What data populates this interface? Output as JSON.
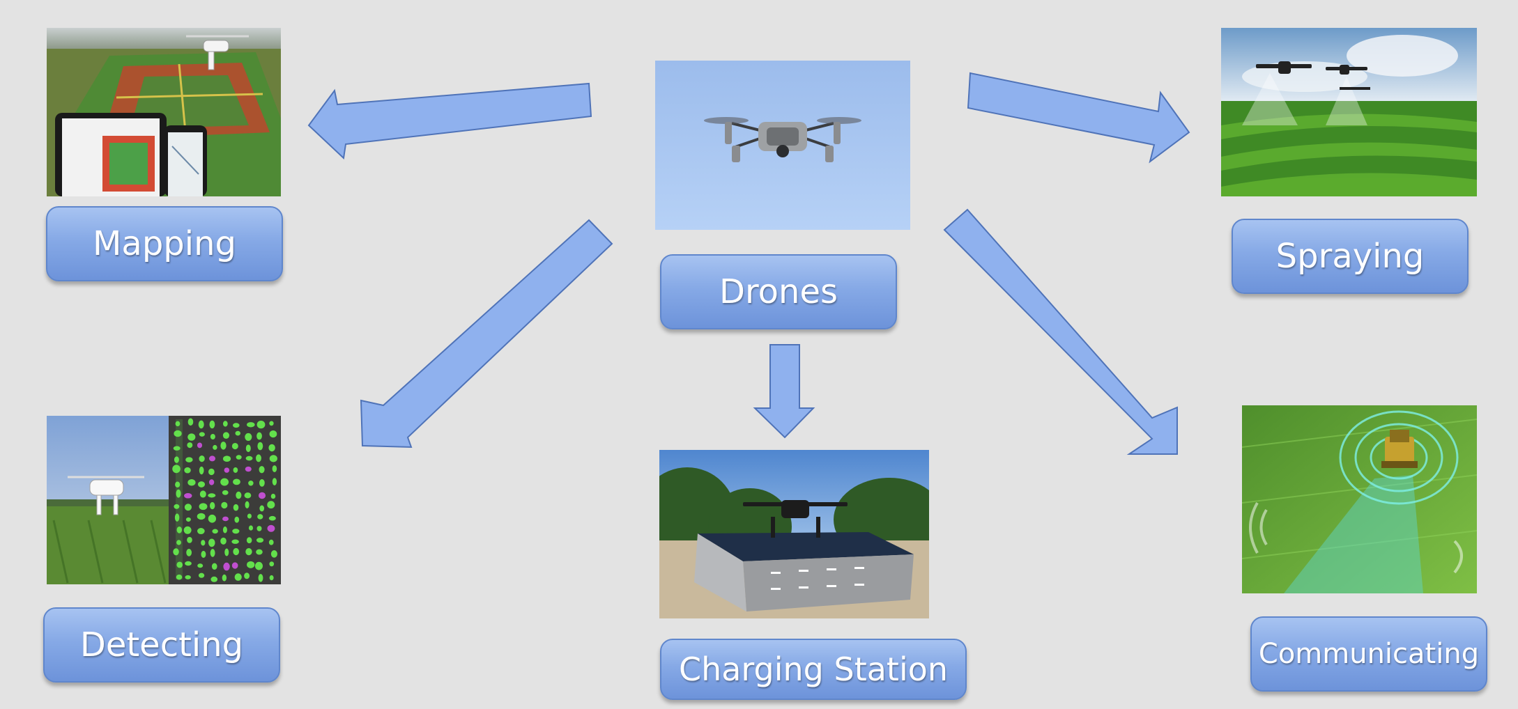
{
  "nodes": {
    "center": {
      "label": "Drones"
    },
    "mapping": {
      "label": "Mapping"
    },
    "spraying": {
      "label": "Spraying"
    },
    "detecting": {
      "label": "Detecting"
    },
    "charging": {
      "label": "Charging Station"
    },
    "communicating": {
      "label": "Communicating"
    }
  },
  "colors": {
    "background": "#e3e3e3",
    "box_fill": "#86a9e6",
    "box_border": "#5f86cc",
    "arrow_fill": "#8fb1ee",
    "arrow_border": "#4f73b8",
    "label_text": "#ffffff"
  },
  "edges": [
    {
      "from": "center",
      "to": "mapping"
    },
    {
      "from": "center",
      "to": "spraying"
    },
    {
      "from": "center",
      "to": "detecting"
    },
    {
      "from": "center",
      "to": "charging"
    },
    {
      "from": "center",
      "to": "communicating"
    }
  ]
}
